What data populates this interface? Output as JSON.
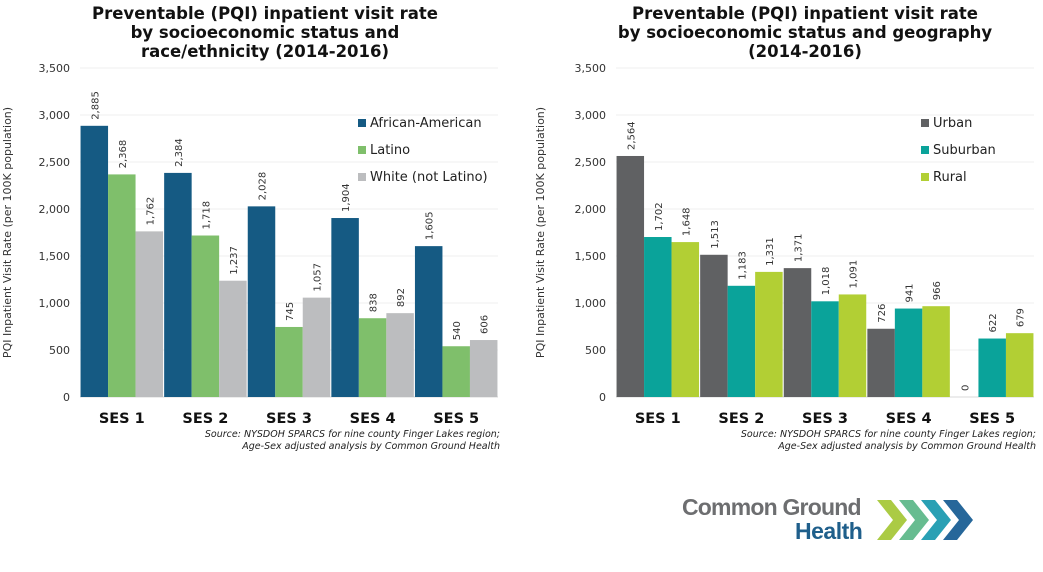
{
  "chart_data": [
    {
      "type": "bar",
      "title": "Preventable (PQI) inpatient visit rate\nby socioeconomic status and\nrace/ethnicity (2014-2016)",
      "xlabel": "",
      "ylabel": "PQI Inpatient Visit Rate (per 100K population)",
      "ylim": [
        0,
        3500
      ],
      "yticks": [
        0,
        500,
        1000,
        1500,
        2000,
        2500,
        3000,
        3500
      ],
      "ytick_labels": [
        "0",
        "500",
        "1,000",
        "1,500",
        "2,000",
        "2,500",
        "3,000",
        "3,500"
      ],
      "grid": true,
      "legend_position": "top-right",
      "categories": [
        "SES 1",
        "SES 2",
        "SES 3",
        "SES 4",
        "SES 5"
      ],
      "series": [
        {
          "name": "African-American",
          "color": "#155a83",
          "values": [
            2885,
            2384,
            2028,
            1904,
            1605
          ],
          "labels": [
            "2,885",
            "2,384",
            "2,028",
            "1,904",
            "1,605"
          ]
        },
        {
          "name": "Latino",
          "color": "#7fbf6b",
          "values": [
            2368,
            1718,
            745,
            838,
            540
          ],
          "labels": [
            "2,368",
            "1,718",
            "745",
            "838",
            "540"
          ]
        },
        {
          "name": "White (not Latino)",
          "color": "#bcbdbf",
          "values": [
            1762,
            1237,
            1057,
            892,
            606
          ],
          "labels": [
            "1,762",
            "1,237",
            "1,057",
            "892",
            "606"
          ]
        }
      ],
      "source": "Source: NYSDOH SPARCS for nine county Finger Lakes region;\nAge-Sex adjusted analysis by Common Ground Health"
    },
    {
      "type": "bar",
      "title": "Preventable (PQI) inpatient visit rate\nby socioeconomic status and geography\n(2014-2016)",
      "xlabel": "",
      "ylabel": "PQI Inpatient Visit Rate (per 100K population)",
      "ylim": [
        0,
        3500
      ],
      "yticks": [
        0,
        500,
        1000,
        1500,
        2000,
        2500,
        3000,
        3500
      ],
      "ytick_labels": [
        "0",
        "500",
        "1,000",
        "1,500",
        "2,000",
        "2,500",
        "3,000",
        "3,500"
      ],
      "grid": true,
      "legend_position": "top-right",
      "categories": [
        "SES 1",
        "SES 2",
        "SES 3",
        "SES 4",
        "SES 5"
      ],
      "series": [
        {
          "name": "Urban",
          "color": "#606163",
          "values": [
            2564,
            1513,
            1371,
            726,
            0
          ],
          "labels": [
            "2,564",
            "1,513",
            "1,371",
            "726",
            "0"
          ]
        },
        {
          "name": "Suburban",
          "color": "#0aa39a",
          "values": [
            1702,
            1183,
            1018,
            941,
            622
          ],
          "labels": [
            "1,702",
            "1,183",
            "1,018",
            "941",
            "622"
          ]
        },
        {
          "name": "Rural",
          "color": "#b2cf34",
          "values": [
            1648,
            1331,
            1091,
            966,
            679
          ],
          "labels": [
            "1,648",
            "1,331",
            "1,091",
            "966",
            "679"
          ]
        }
      ],
      "source": "Source: NYSDOH SPARCS for nine county Finger Lakes region;\nAge-Sex adjusted analysis by Common Ground Health"
    }
  ],
  "logo": {
    "line1": "Common Ground",
    "line2": "Health",
    "chevron_colors": [
      "#a6c83a",
      "#5fb88a",
      "#1d9bb0",
      "#1a5f95"
    ]
  }
}
